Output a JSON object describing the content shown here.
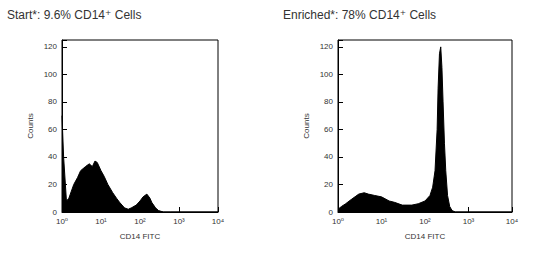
{
  "chart_data": [
    {
      "type": "area",
      "title": "Start*: 9.6% CD14⁺ Cells",
      "x_label": "CD14 FITC",
      "y_label": "Counts",
      "x": [
        1,
        1.1,
        1.3,
        1.5,
        2,
        2.5,
        3,
        4,
        5,
        6,
        7,
        8,
        10,
        12,
        15,
        20,
        25,
        30,
        40,
        50,
        60,
        80,
        100,
        120,
        150,
        180,
        200,
        250,
        300,
        400,
        600,
        1000,
        10000
      ],
      "values": [
        70,
        40,
        8,
        10,
        20,
        25,
        30,
        33,
        35,
        33,
        37,
        36,
        30,
        26,
        20,
        14,
        10,
        7,
        3,
        2,
        3,
        5,
        8,
        11,
        13,
        10,
        7,
        3,
        1,
        0,
        0,
        0,
        0
      ],
      "color": "#000000",
      "log": "x",
      "grid": false,
      "xlim": [
        1,
        10000
      ],
      "ylim": [
        0,
        125
      ],
      "xticks": [
        {
          "value": 1,
          "label": "10⁰"
        },
        {
          "value": 10,
          "label": "10¹"
        },
        {
          "value": 100,
          "label": "10²"
        },
        {
          "value": 1000,
          "label": "10³"
        },
        {
          "value": 10000,
          "label": "10⁴"
        }
      ],
      "yticks": [
        0,
        20,
        40,
        60,
        80,
        100,
        120
      ]
    },
    {
      "type": "area",
      "title": "Enriched*: 78% CD14⁺ Cells",
      "x_label": "CD14 FITC",
      "y_label": "Counts",
      "x": [
        1,
        1.2,
        1.5,
        2,
        3,
        4,
        5,
        7,
        10,
        15,
        20,
        30,
        50,
        70,
        100,
        130,
        150,
        170,
        190,
        200,
        215,
        230,
        245,
        260,
        280,
        300,
        330,
        370,
        420,
        500,
        1000,
        10000
      ],
      "values": [
        2,
        4,
        6,
        9,
        13,
        14,
        13,
        12,
        11,
        8,
        7,
        5,
        5,
        6,
        8,
        12,
        18,
        30,
        60,
        90,
        115,
        120,
        105,
        80,
        50,
        30,
        12,
        4,
        1,
        0,
        0,
        0
      ],
      "color": "#000000",
      "log": "x",
      "grid": false,
      "xlim": [
        1,
        10000
      ],
      "ylim": [
        0,
        125
      ],
      "xticks": [
        {
          "value": 1,
          "label": "10⁰"
        },
        {
          "value": 10,
          "label": "10¹"
        },
        {
          "value": 100,
          "label": "10²"
        },
        {
          "value": 1000,
          "label": "10³"
        },
        {
          "value": 10000,
          "label": "10⁴"
        }
      ],
      "yticks": [
        0,
        20,
        40,
        60,
        80,
        100,
        120
      ]
    }
  ]
}
